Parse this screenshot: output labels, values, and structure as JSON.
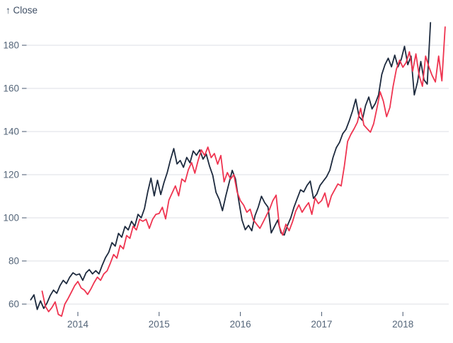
{
  "chart_data": {
    "type": "line",
    "title": "",
    "y_axis_title": "↑ Close",
    "xlabel": "",
    "ylabel": "Close",
    "x_ticks": [
      2014,
      2015,
      2016,
      2017,
      2018
    ],
    "y_ticks": [
      60,
      80,
      100,
      120,
      140,
      160,
      180
    ],
    "x_domain": [
      2013.3,
      2018.6
    ],
    "ylim": [
      60,
      180
    ],
    "grid": "horizontal-only",
    "legend": "none",
    "colors": {
      "series_dark": "#1d2a3e",
      "series_red": "#ef3450",
      "gridline": "#dcdfe4",
      "tick_mark": "#46566d",
      "axis_text": "#546579",
      "axis_title_text": "#3e4e64",
      "background": "#ffffff"
    },
    "series": [
      {
        "name": "series-1-dark",
        "color_key": "series_dark",
        "t0": 2013.42,
        "dt": 0.04,
        "values": [
          62.0,
          64.3,
          57.5,
          61.5,
          58.0,
          60.5,
          64.0,
          66.5,
          65.0,
          68.5,
          71.0,
          69.5,
          72.5,
          74.5,
          73.5,
          74.0,
          71.0,
          74.5,
          76.0,
          74.0,
          75.5,
          74.0,
          78.0,
          81.5,
          84.0,
          88.5,
          86.9,
          92.8,
          91.0,
          96.0,
          94.4,
          98.4,
          96.1,
          101.6,
          100.0,
          104.3,
          112.0,
          118.4,
          110.2,
          117.4,
          110.8,
          116.4,
          121.0,
          127.0,
          132.1,
          125.0,
          126.6,
          123.4,
          128.0,
          125.5,
          131.0,
          129.0,
          131.5,
          127.2,
          129.5,
          124.0,
          119.7,
          111.8,
          108.5,
          103.3,
          110.0,
          116.0,
          122.0,
          118.0,
          108.0,
          99.0,
          94.5,
          96.5,
          94.0,
          101.0,
          105.0,
          110.0,
          107.0,
          105.0,
          93.0,
          96.0,
          99.0,
          93.0,
          92.0,
          96.5,
          100.0,
          105.0,
          109.0,
          113.0,
          112.0,
          115.0,
          117.0,
          109.0,
          111.0,
          115.0,
          117.0,
          119.0,
          122.0,
          128.0,
          132.5,
          135.0,
          139.0,
          141.0,
          145.0,
          149.5,
          155.0,
          147.0,
          145.2,
          152.0,
          156.0,
          150.5,
          153.0,
          157.0,
          166.5,
          171.0,
          174.0,
          170.0,
          175.4,
          170.0,
          173.5,
          179.5,
          171.0,
          175.0,
          157.0,
          163.0,
          172.5,
          164.0,
          162.0,
          190.5
        ]
      },
      {
        "name": "series-2-red",
        "color_key": "series_red",
        "t0": 2013.56,
        "dt": 0.04,
        "values": [
          66.0,
          59.0,
          56.5,
          58.4,
          61.0,
          55.2,
          54.4,
          60.0,
          62.6,
          65.5,
          68.5,
          70.5,
          67.5,
          66.5,
          64.5,
          67.0,
          70.0,
          72.5,
          71.0,
          74.0,
          75.4,
          79.0,
          83.0,
          81.3,
          87.2,
          85.6,
          91.8,
          90.5,
          96.1,
          94.4,
          99.3,
          98.4,
          99.3,
          95.1,
          99.3,
          101.6,
          102.0,
          104.9,
          99.5,
          108.2,
          111.5,
          114.8,
          110.2,
          118.0,
          116.7,
          122.3,
          125.6,
          120.7,
          126.6,
          131.5,
          128.9,
          132.8,
          127.9,
          129.8,
          124.9,
          128.9,
          116.7,
          121.0,
          118.0,
          120.0,
          112.0,
          108.0,
          105.9,
          102.6,
          104.0,
          99.0,
          97.0,
          95.1,
          98.0,
          101.0,
          104.0,
          108.0,
          110.5,
          96.0,
          92.0,
          97.0,
          94.0,
          98.0,
          103.0,
          106.0,
          102.6,
          105.0,
          107.0,
          101.6,
          109.2,
          106.6,
          108.0,
          111.5,
          105.0,
          110.2,
          113.0,
          115.7,
          114.8,
          124.0,
          135.4,
          138.7,
          141.3,
          144.3,
          150.8,
          143.0,
          141.3,
          139.7,
          143.6,
          150.8,
          158.4,
          154.1,
          146.9,
          151.1,
          161.0,
          168.9,
          173.1,
          169.8,
          172.0,
          177.0,
          168.0,
          176.0,
          166.0,
          161.0,
          175.0,
          170.0,
          166.0,
          163.0,
          175.0,
          163.5,
          188.5
        ]
      }
    ]
  }
}
